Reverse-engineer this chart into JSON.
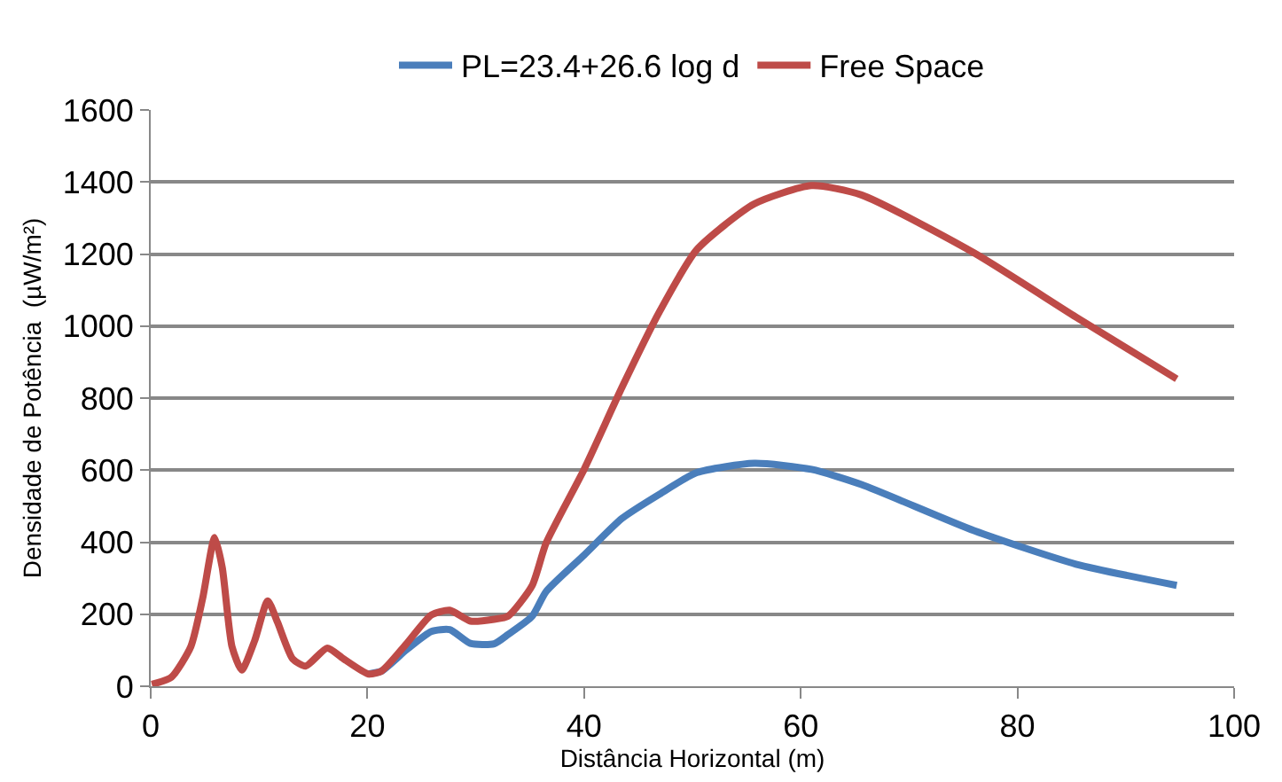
{
  "chart_data": {
    "type": "line",
    "xlabel": "Distância Horizontal (m)",
    "ylabel": "Densidade de Potência  (µW/m²)",
    "xlim": [
      0,
      100
    ],
    "xticks": [
      0,
      20,
      40,
      60,
      80,
      100
    ],
    "ylim": [
      0,
      1600
    ],
    "yticks": [
      0,
      200,
      400,
      600,
      800,
      1000,
      1200,
      1400,
      1600
    ],
    "grid": "y",
    "legend": "top",
    "marker": "none",
    "line_style": "solid",
    "series": [
      {
        "name": "PL=23.4+26.6 log d",
        "color": "#4a7ebb",
        "x": [
          20.1,
          21.3,
          23.6,
          25.9,
          27.6,
          29.5,
          31.7,
          33,
          35.2,
          36.5,
          40,
          43.5,
          47,
          50.4,
          55.7,
          61,
          65.6,
          76,
          85.4,
          94.7
        ],
        "values": [
          34,
          42,
          101,
          152,
          157,
          119,
          118,
          144,
          194,
          263,
          364,
          466,
          534,
          593,
          619,
          602,
          560,
          432,
          339,
          280
        ]
      },
      {
        "name": "Free Space",
        "color": "#be4b48",
        "x": [
          0.1,
          1.9,
          3.7,
          4.8,
          5.9,
          6.6,
          7.5,
          8.4,
          9.6,
          10.8,
          11.7,
          13.1,
          14.3,
          16.3,
          17.8,
          20.1,
          21.3,
          23.6,
          25.9,
          27.6,
          29.5,
          31.7,
          33,
          35.2,
          36.5,
          40,
          43.5,
          47,
          50.4,
          55.7,
          61,
          65.6,
          76,
          85.4,
          94.7
        ],
        "values": [
          5,
          25,
          110,
          245,
          413,
          330,
          110,
          45,
          127,
          237,
          178,
          76,
          56,
          106,
          76,
          34,
          42,
          118,
          198,
          211,
          181,
          186,
          195,
          279,
          398,
          602,
          830,
          1042,
          1212,
          1339,
          1390,
          1364,
          1203,
          1025,
          853
        ]
      }
    ]
  }
}
